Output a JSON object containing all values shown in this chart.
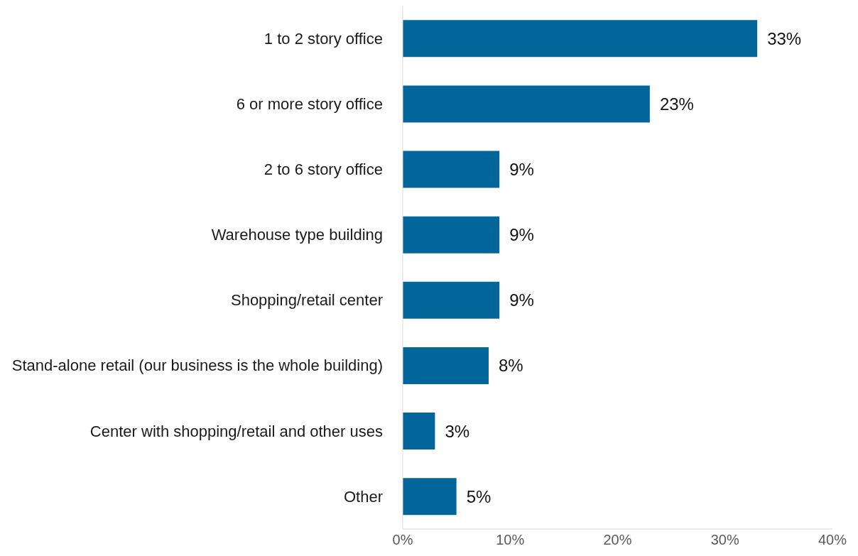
{
  "chart_data": {
    "type": "bar",
    "orientation": "horizontal",
    "categories": [
      "1 to 2 story office",
      "6 or more story office",
      "2 to 6 story office",
      "Warehouse type building",
      "Shopping/retail center",
      "Stand-alone retail (our business is the whole building)",
      "Center with shopping/retail and other uses",
      "Other"
    ],
    "values": [
      33,
      23,
      9,
      9,
      9,
      8,
      3,
      5
    ],
    "value_labels": [
      "33%",
      "23%",
      "9%",
      "9%",
      "9%",
      "8%",
      "3%",
      "5%"
    ],
    "color": "#02669a",
    "xlim": [
      0,
      40
    ],
    "xticks": [
      {
        "value": 0,
        "label": "0%"
      },
      {
        "value": 10,
        "label": "10%"
      },
      {
        "value": 20,
        "label": "20%"
      },
      {
        "value": 30,
        "label": "30%"
      },
      {
        "value": 40,
        "label": "40%"
      }
    ],
    "grid": false
  }
}
